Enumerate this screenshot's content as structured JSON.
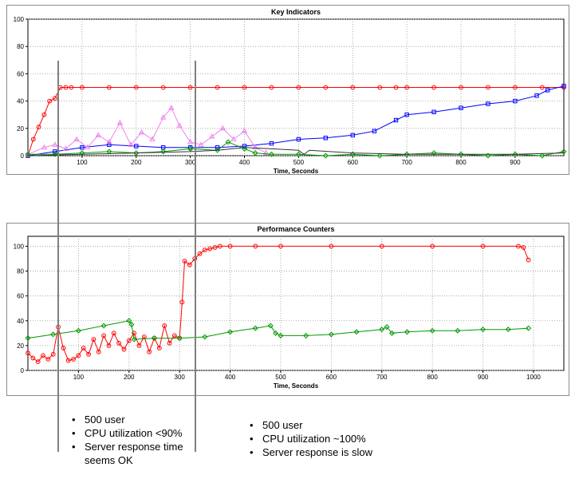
{
  "chart_data": [
    {
      "type": "line",
      "title": "Key Indicators",
      "xlabel": "Time, Seconds",
      "ylabel": "",
      "xlim": [
        0,
        990
      ],
      "ylim": [
        0,
        100
      ],
      "xticks": [
        100,
        200,
        300,
        400,
        500,
        600,
        700,
        800,
        900
      ],
      "yticks": [
        0,
        20,
        40,
        60,
        80,
        100
      ],
      "grid": true,
      "series": [
        {
          "color": "#ff0000",
          "marker": "circle",
          "x": [
            0,
            10,
            20,
            30,
            40,
            50,
            60,
            70,
            80,
            100,
            150,
            200,
            250,
            300,
            350,
            400,
            450,
            500,
            550,
            600,
            650,
            680,
            700,
            750,
            800,
            850,
            900,
            950,
            990
          ],
          "y": [
            0,
            12,
            21,
            30,
            40,
            42,
            50,
            50,
            50,
            50,
            50,
            50,
            50,
            50,
            50,
            50,
            50,
            50,
            50,
            50,
            50,
            50,
            50,
            50,
            50,
            50,
            50,
            50,
            50
          ]
        },
        {
          "color": "#0000ff",
          "marker": "square",
          "x": [
            0,
            50,
            100,
            150,
            200,
            250,
            300,
            350,
            400,
            450,
            500,
            550,
            600,
            640,
            680,
            700,
            750,
            800,
            850,
            900,
            940,
            960,
            990
          ],
          "y": [
            0,
            3,
            6,
            8,
            7,
            6,
            6,
            6,
            7,
            9,
            12,
            13,
            15,
            18,
            26,
            30,
            32,
            35,
            38,
            40,
            44,
            48,
            51
          ]
        },
        {
          "color": "#ee82ee",
          "marker": "triangle",
          "x": [
            0,
            30,
            50,
            70,
            90,
            110,
            130,
            150,
            170,
            190,
            210,
            230,
            250,
            265,
            280,
            300,
            320,
            340,
            360,
            380,
            400,
            420,
            440
          ],
          "y": [
            1,
            6,
            8,
            5,
            12,
            6,
            15,
            10,
            24,
            8,
            17,
            12,
            28,
            35,
            22,
            10,
            8,
            14,
            20,
            12,
            18,
            6,
            2
          ]
        },
        {
          "color": "#009900",
          "marker": "diamond",
          "x": [
            0,
            50,
            100,
            150,
            200,
            250,
            300,
            350,
            370,
            400,
            420,
            450,
            500,
            550,
            600,
            650,
            700,
            750,
            800,
            850,
            900,
            950,
            990
          ],
          "y": [
            1,
            1,
            2,
            3,
            2,
            3,
            5,
            4,
            10,
            5,
            2,
            1,
            1,
            0,
            1,
            0,
            1,
            2,
            1,
            0,
            1,
            0,
            3
          ]
        },
        {
          "color": "#333333",
          "marker": "none",
          "x": [
            0,
            100,
            200,
            300,
            350,
            400,
            450,
            500,
            510,
            520,
            600,
            700,
            800,
            900,
            990
          ],
          "y": [
            0,
            1,
            2,
            3,
            4,
            6,
            5,
            4,
            1,
            4,
            2,
            1,
            1,
            1,
            2
          ]
        }
      ]
    },
    {
      "type": "line",
      "title": "Performance Counters",
      "xlabel": "Time, Seconds",
      "ylabel": "",
      "xlim": [
        0,
        1060
      ],
      "ylim": [
        0,
        108
      ],
      "xticks": [
        100,
        200,
        300,
        400,
        500,
        600,
        700,
        800,
        900,
        1000
      ],
      "yticks": [
        0,
        20,
        40,
        60,
        80,
        100
      ],
      "grid": true,
      "series": [
        {
          "color": "#ff0000",
          "marker": "circle",
          "x": [
            0,
            10,
            20,
            30,
            40,
            50,
            60,
            70,
            80,
            90,
            100,
            110,
            120,
            130,
            140,
            150,
            160,
            170,
            180,
            190,
            200,
            210,
            220,
            230,
            240,
            250,
            260,
            270,
            280,
            290,
            300,
            305,
            310,
            320,
            330,
            340,
            350,
            360,
            370,
            380,
            400,
            450,
            500,
            600,
            700,
            800,
            900,
            970,
            980,
            990
          ],
          "y": [
            14,
            10,
            7,
            12,
            9,
            13,
            35,
            18,
            8,
            9,
            12,
            18,
            13,
            25,
            15,
            28,
            20,
            30,
            22,
            17,
            24,
            30,
            20,
            27,
            15,
            26,
            18,
            36,
            22,
            28,
            26,
            55,
            88,
            85,
            90,
            94,
            97,
            98,
            99,
            100,
            100,
            100,
            100,
            100,
            100,
            100,
            100,
            100,
            99,
            89
          ]
        },
        {
          "color": "#009900",
          "marker": "diamond",
          "x": [
            0,
            50,
            100,
            150,
            200,
            205,
            210,
            250,
            300,
            350,
            400,
            450,
            480,
            490,
            500,
            550,
            600,
            650,
            700,
            710,
            720,
            750,
            800,
            850,
            900,
            950,
            990
          ],
          "y": [
            26,
            29,
            32,
            36,
            40,
            37,
            25,
            26,
            26,
            27,
            31,
            34,
            36,
            30,
            28,
            28,
            29,
            31,
            33,
            35,
            30,
            31,
            32,
            32,
            33,
            33,
            34
          ]
        }
      ]
    }
  ],
  "notes_left": [
    "500 user",
    "CPU utilization <90%",
    "Server response time seems OK"
  ],
  "notes_right": [
    "500 user",
    "CPU utilization ~100%",
    "Server response is slow"
  ]
}
